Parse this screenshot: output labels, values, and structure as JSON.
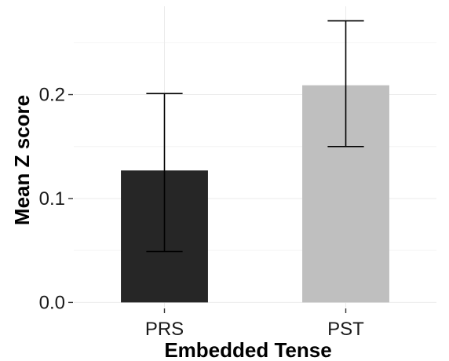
{
  "chart_data": {
    "type": "bar",
    "title": "",
    "xlabel": "Embedded Tense",
    "ylabel": "Mean Z score",
    "categories": [
      "PRS",
      "PST"
    ],
    "values": [
      0.127,
      0.209
    ],
    "error_low": [
      0.049,
      0.15
    ],
    "error_high": [
      0.201,
      0.271
    ],
    "colors": [
      "#262626",
      "#bfbfbf"
    ],
    "ylim": [
      -0.005,
      0.285
    ],
    "yticks": [
      0.0,
      0.1,
      0.2
    ],
    "ytick_labels": [
      "0.0",
      "0.1",
      "0.2"
    ],
    "grid": true,
    "legend": "none"
  }
}
